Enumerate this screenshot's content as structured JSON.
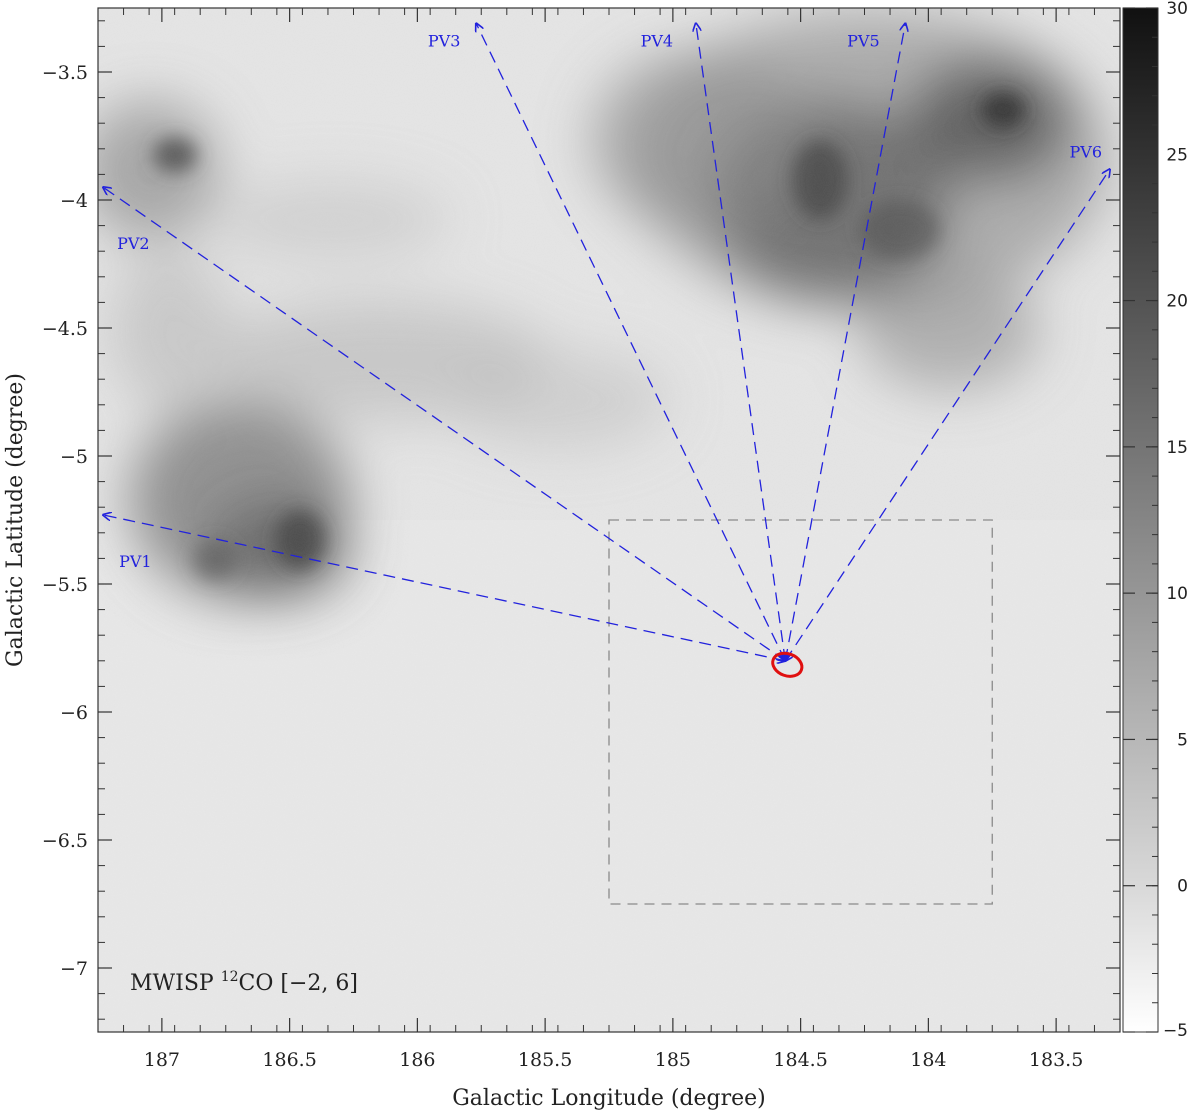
{
  "figure": {
    "annotation": {
      "prefix": "MWISP ",
      "sup": "12",
      "suffix": "CO [−2, 6]"
    },
    "xlabel": "Galactic Longitude (degree)",
    "ylabel": "Galactic Latitude (degree)",
    "x_ticks": [
      {
        "value": 187,
        "label": "187"
      },
      {
        "value": 186.5,
        "label": "186.5"
      },
      {
        "value": 186,
        "label": "186"
      },
      {
        "value": 185.5,
        "label": "185.5"
      },
      {
        "value": 185,
        "label": "185"
      },
      {
        "value": 184.5,
        "label": "184.5"
      },
      {
        "value": 184,
        "label": "184"
      },
      {
        "value": 183.5,
        "label": "183.5"
      }
    ],
    "y_ticks": [
      {
        "value": -3.5,
        "label": "−3.5"
      },
      {
        "value": -4,
        "label": "−4"
      },
      {
        "value": -4.5,
        "label": "−4.5"
      },
      {
        "value": -5,
        "label": "−5"
      },
      {
        "value": -5.5,
        "label": "−5.5"
      },
      {
        "value": -6,
        "label": "−6"
      },
      {
        "value": -6.5,
        "label": "−6.5"
      },
      {
        "value": -7,
        "label": "−7"
      }
    ],
    "colorbar_ticks": [
      {
        "value": 30,
        "label": "30"
      },
      {
        "value": 25,
        "label": "25"
      },
      {
        "value": 20,
        "label": "20"
      },
      {
        "value": 15,
        "label": "15"
      },
      {
        "value": 10,
        "label": "10"
      },
      {
        "value": 5,
        "label": "5"
      },
      {
        "value": 0,
        "label": "0"
      },
      {
        "value": -5,
        "label": "−5"
      }
    ],
    "colorbar_range": [
      -5,
      30
    ],
    "x_range": [
      187.25,
      183.25
    ],
    "y_range": [
      -3.25,
      -7.25
    ],
    "center": {
      "l": 184.56,
      "b": -5.8
    },
    "pv_cuts": [
      {
        "name": "PV1",
        "end_l": 187.23,
        "end_b": -5.23
      },
      {
        "name": "PV2",
        "end_l": 187.23,
        "end_b": -3.95
      },
      {
        "name": "PV3",
        "end_l": 185.77,
        "end_b": -3.31
      },
      {
        "name": "PV4",
        "end_l": 184.91,
        "end_b": -3.31
      },
      {
        "name": "PV5",
        "end_l": 184.09,
        "end_b": -3.31
      },
      {
        "name": "PV6",
        "end_l": 183.29,
        "end_b": -3.88
      }
    ],
    "dashed_box": {
      "l_min": 183.75,
      "l_max": 185.25,
      "b_min": -6.75,
      "b_max": -5.25
    },
    "colors": {
      "pv_lines": "#2222dd",
      "marker": "#e01010",
      "box": "#8a8a8a"
    }
  }
}
